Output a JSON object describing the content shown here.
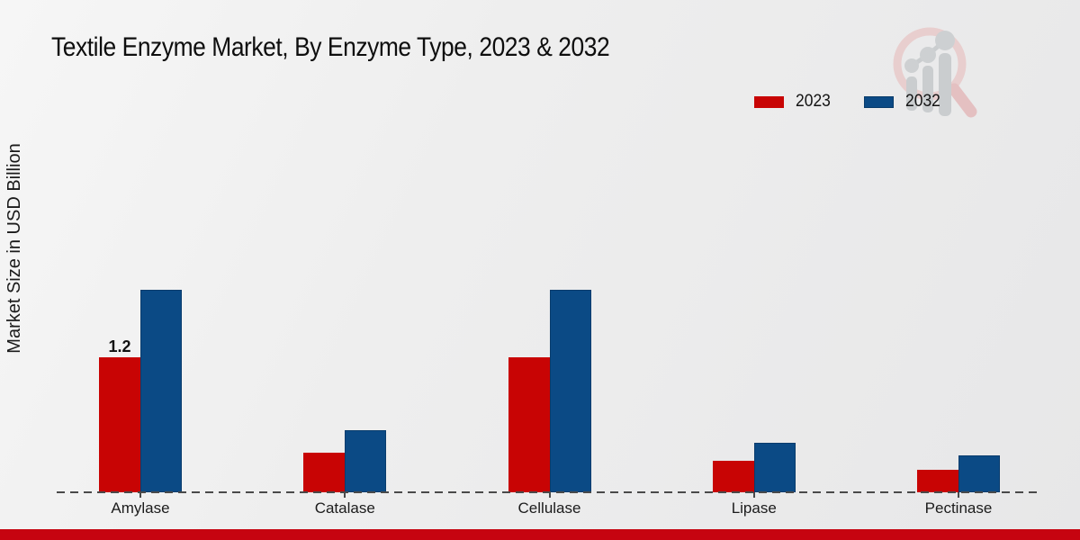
{
  "title": "Textile Enzyme Market, By Enzyme Type, 2023 & 2032",
  "y_axis_label": "Market Size in USD Billion",
  "colors": {
    "series_2023": "#c80404",
    "series_2032": "#0b4a85",
    "footer_bar": "#c60410",
    "baseline": "#4a4a4a",
    "text": "#141414"
  },
  "legend": {
    "position": "top-right",
    "items": [
      {
        "label": "2023",
        "color": "#c80404"
      },
      {
        "label": "2032",
        "color": "#0b4a85"
      }
    ]
  },
  "chart_data": {
    "type": "bar",
    "title": "Textile Enzyme Market, By Enzyme Type, 2023 & 2032",
    "xlabel": "",
    "ylabel": "Market Size in USD Billion",
    "categories": [
      "Amylase",
      "Catalase",
      "Cellulase",
      "Lipase",
      "Pectinase"
    ],
    "series": [
      {
        "name": "2023",
        "color": "#c80404",
        "values": [
          1.2,
          0.35,
          1.2,
          0.28,
          0.2
        ]
      },
      {
        "name": "2032",
        "color": "#0b4a85",
        "values": [
          1.8,
          0.55,
          1.8,
          0.44,
          0.33
        ]
      }
    ],
    "data_labels": [
      {
        "series": "2023",
        "category": "Amylase",
        "text": "1.2"
      }
    ],
    "ylim": [
      0,
      2.0
    ],
    "grid": false,
    "baseline_style": "dashed",
    "legend_position": "top-right"
  },
  "watermark": {
    "name": "magnifier-bar-chart-logo"
  }
}
